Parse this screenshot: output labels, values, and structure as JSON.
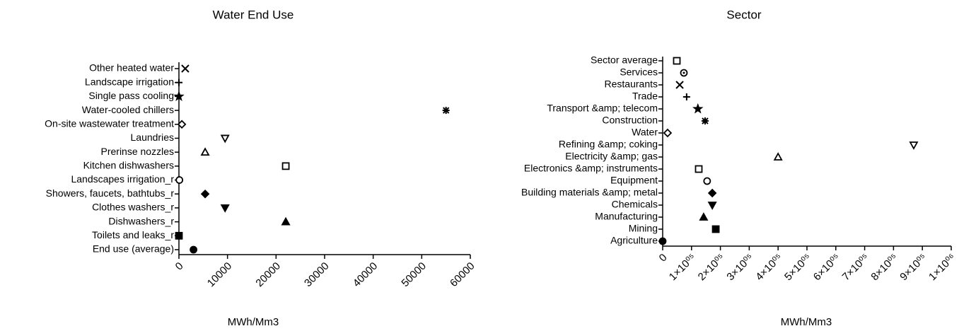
{
  "chart_data": [
    {
      "type": "dot",
      "title": "Water End Use",
      "xlabel": "MWh/Mm3",
      "categories": [
        "Other heated water",
        "Landscape irrigation",
        "Single pass cooling",
        "Water-cooled chillers",
        "On-site wastewater treatment",
        "Laundries",
        "Prerinse nozzles",
        "Kitchen dishwashers",
        "Landscapes irrigation_r",
        "Showers, faucets, bathtubs_r",
        "Clothes washers_r",
        "Dishwashers_r",
        "Toilets and leaks_r",
        "End use (average)"
      ],
      "values": [
        1300,
        0,
        0,
        55000,
        600,
        9500,
        5400,
        22000,
        100,
        5400,
        9500,
        22000,
        0,
        3000
      ],
      "markers": [
        "x",
        "plus",
        "star",
        "asterisk",
        "diamond-open",
        "tri-down-open",
        "tri-open",
        "square-open",
        "circle-open",
        "diamond",
        "tri-down",
        "tri",
        "square",
        "circle"
      ],
      "color": "#000000",
      "xlim": [
        0,
        60000
      ],
      "xticks": [
        0,
        10000,
        20000,
        30000,
        40000,
        50000,
        60000
      ]
    },
    {
      "type": "dot",
      "title": "Sector",
      "xlabel": "MWh/Mm3",
      "categories": [
        "Sector average",
        "Services",
        "Restaurants",
        "Trade",
        "Transport &amp; telecom",
        "Construction",
        "Water",
        "Refining &amp; coking",
        "Electricity &amp; gas",
        "Electronics &amp; instruments",
        "Equipment",
        "Building materials &amp; metal",
        "Chemicals",
        "Manufacturing",
        "Mining",
        "Agriculture"
      ],
      "values": [
        49000,
        73500,
        59000,
        83000,
        122000,
        147000,
        17000,
        870000,
        400000,
        125000,
        154000,
        172000,
        172000,
        142000,
        184000,
        0
      ],
      "markers": [
        "square-open",
        "circle-dot",
        "x",
        "plus",
        "star",
        "asterisk",
        "diamond-open",
        "tri-down-open",
        "tri-open",
        "square-open",
        "circle-open",
        "diamond",
        "tri-down",
        "tri",
        "square",
        "circle"
      ],
      "color": "#000000",
      "xlim": [
        0,
        1000000
      ],
      "xticks": [
        0,
        {
          "value": 100000,
          "label": "1×10⁰⁵"
        },
        {
          "value": 200000,
          "label": "2×10⁰⁵"
        },
        {
          "value": 300000,
          "label": "3×10⁰⁵"
        },
        {
          "value": 400000,
          "label": "4×10⁰⁵"
        },
        {
          "value": 500000,
          "label": "5×10⁰⁵"
        },
        {
          "value": 600000,
          "label": "6×10⁰⁵"
        },
        {
          "value": 700000,
          "label": "7×10⁰⁵"
        },
        {
          "value": 800000,
          "label": "8×10⁰⁵"
        },
        {
          "value": 900000,
          "label": "9×10⁰⁵"
        },
        {
          "value": 1000000,
          "label": "1×10⁰⁶"
        }
      ]
    }
  ]
}
